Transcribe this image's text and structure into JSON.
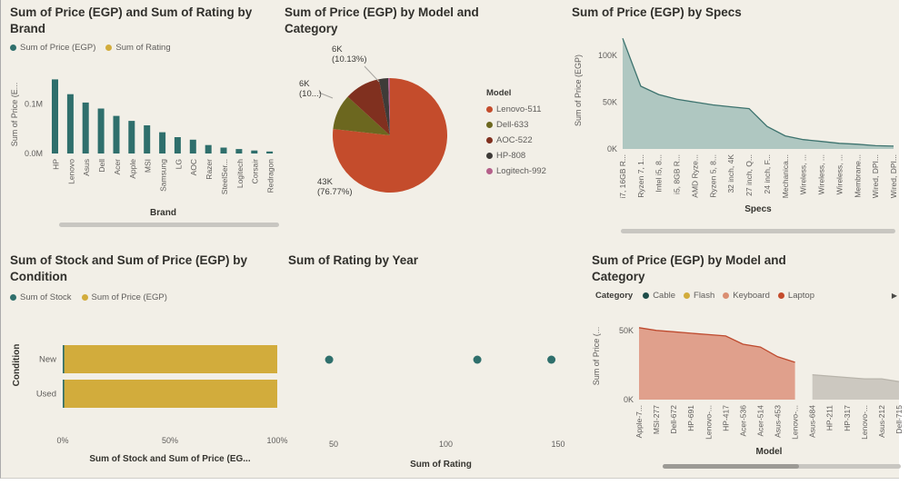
{
  "canvas_bg": "#F2EFE7",
  "chart_data": [
    {
      "id": "brand_bar",
      "type": "bar",
      "title": "Sum of Price (EGP) and Sum of Rating by Brand",
      "legend": [
        {
          "label": "Sum of Price (EGP)",
          "color": "#2F6F6C"
        },
        {
          "label": "Sum of Rating",
          "color": "#D2AC3C"
        }
      ],
      "ylabel": "Sum of Price (E...",
      "xlabel": "Brand",
      "y_ticks": [
        {
          "label": "0.0M",
          "value": 0
        },
        {
          "label": "0.1M",
          "value": 0.1
        }
      ],
      "ymax": 0.158,
      "bar_color": "#2F6F6C",
      "categories": [
        "HP",
        "Lenovo",
        "Asus",
        "Dell",
        "Acer",
        "Apple",
        "MSI",
        "Samsung",
        "LG",
        "AOC",
        "Razer",
        "SteelSer...",
        "Logitech",
        "Corsair",
        "Redragon"
      ],
      "values": [
        0.15,
        0.12,
        0.103,
        0.091,
        0.076,
        0.066,
        0.057,
        0.043,
        0.033,
        0.028,
        0.017,
        0.012,
        0.009,
        0.006,
        0.004
      ]
    },
    {
      "id": "model_pie",
      "type": "pie",
      "title": "Sum of Price (EGP) by Model and Category",
      "legend_title": "Model",
      "slices": [
        {
          "label": "Lenovo-511",
          "color": "#C44C2C",
          "pct": 76.77,
          "callout": [
            "43K",
            "(76.77%)"
          ]
        },
        {
          "label": "Dell-633",
          "color": "#6C671F",
          "pct": 10.0,
          "callout": [
            "6K",
            "(10...)"
          ]
        },
        {
          "label": "AOC-522",
          "color": "#80301F",
          "pct": 10.13,
          "callout": [
            "6K",
            "(10.13%)"
          ]
        },
        {
          "label": "HP-808",
          "color": "#3E3B38",
          "pct": 2.6
        },
        {
          "label": "Logitech-992",
          "color": "#B5608A",
          "pct": 0.5
        }
      ]
    },
    {
      "id": "specs_area",
      "type": "area",
      "title": "Sum of Price (EGP) by Specs",
      "ylabel": "Sum of Price (EGP)",
      "xlabel": "Specs",
      "y_ticks": [
        {
          "label": "0K",
          "value": 0
        },
        {
          "label": "50K",
          "value": 50
        },
        {
          "label": "100K",
          "value": 100
        }
      ],
      "ymax": 125,
      "fill": "#AFC7C1",
      "stroke": "#3D736E",
      "categories": [
        "i7, 16GB R...",
        "Ryzen 7, 1...",
        "Intel i5, 8...",
        "i5, 8GB R...",
        "AMD Ryze...",
        "Ryzen 5, 8...",
        "32 inch, 4K",
        "27 inch, Q...",
        "24 inch, F...",
        "Mechanica...",
        "Wireless, ...",
        "Wireless, ...",
        "Wireless, ...",
        "Membrane...",
        "Wired, DPI...",
        "Wired, DPI..."
      ],
      "values": [
        118,
        67,
        58,
        53,
        50,
        47,
        45,
        43,
        24,
        14,
        10,
        8,
        6,
        5,
        3.5,
        3
      ]
    },
    {
      "id": "condition_bar",
      "type": "bar",
      "title": "Sum of Stock and Sum of Price (EGP) by Condition",
      "legend": [
        {
          "label": "Sum of Stock",
          "color": "#2F6F6C"
        },
        {
          "label": "Sum of Price (EGP)",
          "color": "#D2AC3C"
        }
      ],
      "ylabel": "Condition",
      "xlabel": "Sum of Stock and Sum of Price (EG...",
      "x_ticks": [
        {
          "label": "0%",
          "pct": 0
        },
        {
          "label": "50%",
          "pct": 50
        },
        {
          "label": "100%",
          "pct": 100
        }
      ],
      "categories": [
        "New",
        "Used"
      ],
      "series": [
        {
          "name": "Sum of Stock",
          "color": "#2F6F6C",
          "pcts": [
            0.7,
            0.7
          ]
        },
        {
          "name": "Sum of Price (EGP)",
          "color": "#D2AC3C",
          "pcts": [
            99.3,
            99.3
          ]
        }
      ]
    },
    {
      "id": "rating_scatter",
      "type": "scatter",
      "title": "Sum of Rating by Year",
      "xlabel": "Sum of Rating",
      "x_ticks": [
        50,
        100,
        150
      ],
      "points": [
        48,
        114,
        147
      ],
      "dot_color": "#2F6F6C"
    },
    {
      "id": "model_area",
      "type": "area",
      "title": "Sum of Price (EGP) by Model and Category",
      "legend_title": "Category",
      "legend": [
        {
          "label": "Cable",
          "color": "#1E4D49"
        },
        {
          "label": "Flash",
          "color": "#D2AC3C"
        },
        {
          "label": "Keyboard",
          "color": "#DA8E72"
        },
        {
          "label": "Laptop",
          "color": "#C44C2C"
        }
      ],
      "legend_more": "▶",
      "ylabel": "Sum of Price (...",
      "xlabel": "Model",
      "y_ticks": [
        {
          "label": "0K",
          "value": 0
        },
        {
          "label": "50K",
          "value": 50
        }
      ],
      "ymax": 63,
      "categories": [
        "Apple-7...",
        "MSI-277",
        "Dell-672",
        "HP-691",
        "Lenovo-...",
        "HP-417",
        "Acer-536",
        "Acer-514",
        "Asus-453",
        "Lenovo-...",
        "Asus-684",
        "HP-211",
        "HP-317",
        "Lenovo-...",
        "Asus-212",
        "Dell-715"
      ],
      "segments": [
        {
          "start": 0,
          "stroke": "#BE4A2E",
          "fill": "#E0A08C",
          "values": [
            52,
            50,
            49,
            48,
            47,
            46,
            40,
            38,
            31,
            27
          ]
        },
        {
          "start": 10,
          "stroke": "#B8B4AB",
          "fill": "#CCC8C0",
          "values": [
            18,
            17,
            16,
            15,
            15,
            13
          ]
        }
      ]
    }
  ]
}
